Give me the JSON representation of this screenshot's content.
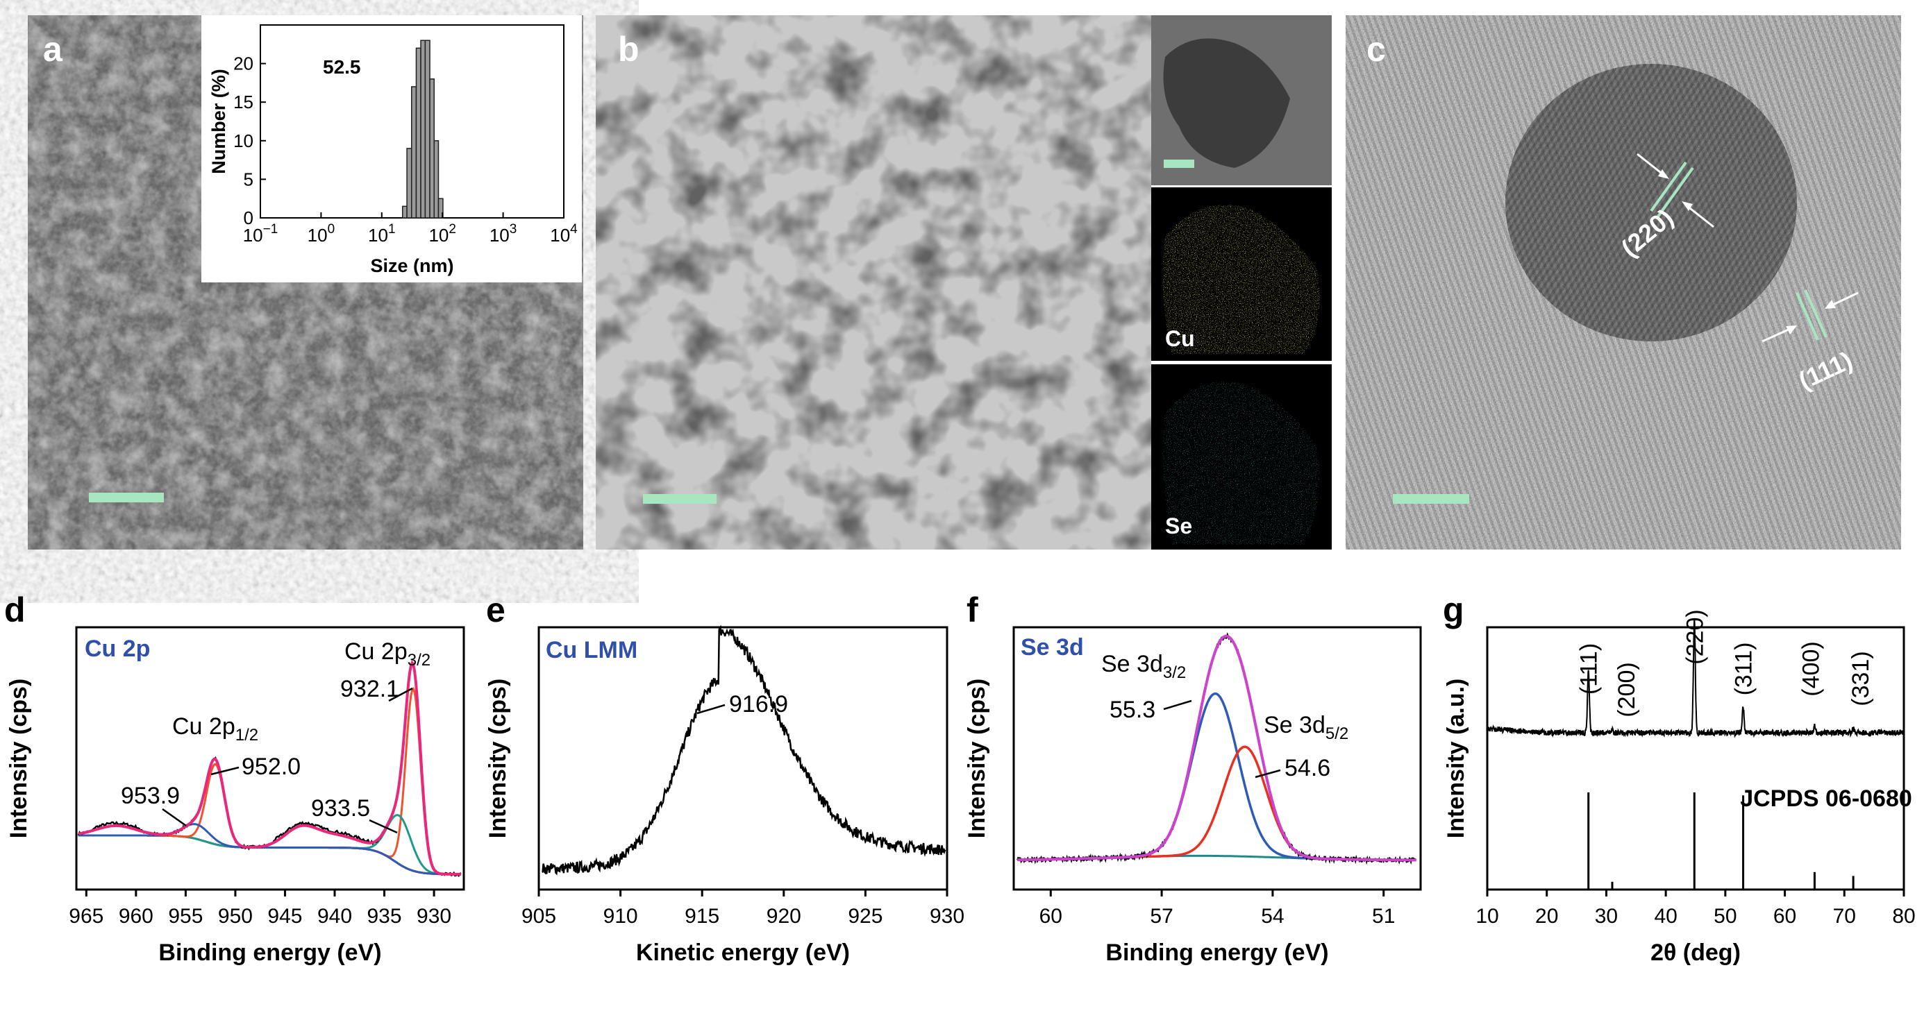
{
  "panels": {
    "a": "a",
    "b": "b",
    "c": "c",
    "d": "d",
    "e": "e",
    "f": "f",
    "g": "g"
  },
  "colors": {
    "scale_bar": "#a8e6c1",
    "cu_map": "#d8d41a",
    "se_map": "#16b7c6",
    "envelope": "#e8287a",
    "cu_main": "#f0522d",
    "cu_sat": "#1f9a8a",
    "bg": "#8a2020",
    "se_env": "#cc44cc",
    "se_a": "#2f5bb7",
    "se_b": "#e83020",
    "se_bg": "#1f8a8a"
  },
  "sem_inset": {
    "label_value": "52.5"
  },
  "eds": {
    "cu": "Cu",
    "se": "Se"
  },
  "hrtem": {
    "plane1": "(220)",
    "plane2": "(111)"
  },
  "chart_data": [
    {
      "id": "a-inset",
      "type": "bar",
      "xscale": "log",
      "xlabel": "Size (nm)",
      "ylabel": "Number (%)",
      "xticks": [
        "10",
        "10",
        "10",
        "10",
        "10",
        "10"
      ],
      "xtick_exps": [
        "−1",
        "0",
        "1",
        "2",
        "3",
        "4"
      ],
      "xlim": [
        -1,
        4
      ],
      "ylim": [
        0,
        25
      ],
      "yticks": [
        "0",
        "5",
        "10",
        "15",
        "20"
      ],
      "bins": [
        {
          "x": [
            22,
            26
          ],
          "y": 1.5
        },
        {
          "x": [
            26,
            31
          ],
          "y": 9
        },
        {
          "x": [
            31,
            37
          ],
          "y": 17
        },
        {
          "x": [
            37,
            44
          ],
          "y": 22
        },
        {
          "x": [
            44,
            52
          ],
          "y": 23
        },
        {
          "x": [
            52,
            62
          ],
          "y": 23
        },
        {
          "x": [
            62,
            73
          ],
          "y": 18
        },
        {
          "x": [
            73,
            86
          ],
          "y": 10
        },
        {
          "x": [
            86,
            102
          ],
          "y": 2.5
        }
      ],
      "annotation": "52.5"
    },
    {
      "id": "d",
      "type": "line",
      "title": "Cu 2p",
      "xlabel": "Binding energy (eV)",
      "ylabel": "Intensity (cps)",
      "xlim": [
        966,
        927
      ],
      "xticks": [
        "965",
        "960",
        "955",
        "950",
        "945",
        "940",
        "935",
        "930"
      ],
      "annotations": {
        "cu2p32_main": "Cu 2p",
        "cu2p32_sub": "3/2",
        "cu2p12_main": "Cu 2p",
        "cu2p12_sub": "1/2",
        "p932": "932.1",
        "p952": "952.0",
        "p953": "953.9",
        "p933": "933.5"
      }
    },
    {
      "id": "e",
      "type": "line",
      "title": "Cu LMM",
      "xlabel": "Kinetic energy (eV)",
      "ylabel": "Intensity (cps)",
      "xlim": [
        905,
        930
      ],
      "xticks": [
        "905",
        "910",
        "915",
        "920",
        "925",
        "930"
      ],
      "annotations": {
        "peak": "916.9"
      }
    },
    {
      "id": "f",
      "type": "line",
      "title": "Se 3d",
      "xlabel": "Binding energy (eV)",
      "ylabel": "Intensity (cps)",
      "xlim": [
        61,
        50
      ],
      "xticks": [
        "60",
        "57",
        "54",
        "51"
      ],
      "annotations": {
        "se32_main": "Se 3d",
        "se32_sub": "3/2",
        "se52_main": "Se 3d",
        "se52_sub": "5/2",
        "p553": "55.3",
        "p546": "54.6"
      }
    },
    {
      "id": "g",
      "type": "line",
      "xlabel": "2θ (deg)",
      "ylabel": "Intensity (a.u.)",
      "xlim": [
        10,
        80
      ],
      "xticks": [
        "10",
        "20",
        "30",
        "40",
        "50",
        "60",
        "70",
        "80"
      ],
      "reference": "JCPDS 06-0680",
      "peaks": [
        {
          "x": 27,
          "hkl": "(111)"
        },
        {
          "x": 31,
          "hkl": "(200)"
        },
        {
          "x": 44.8,
          "hkl": "(220)"
        },
        {
          "x": 53,
          "hkl": "(311)"
        },
        {
          "x": 65,
          "hkl": "(400)"
        },
        {
          "x": 71.5,
          "hkl": "(331)"
        }
      ],
      "ref_lines": [
        {
          "x": 27,
          "h": 100
        },
        {
          "x": 31,
          "h": 8
        },
        {
          "x": 44.8,
          "h": 100
        },
        {
          "x": 53,
          "h": 97
        },
        {
          "x": 65,
          "h": 18
        },
        {
          "x": 71.5,
          "h": 14
        }
      ]
    }
  ]
}
